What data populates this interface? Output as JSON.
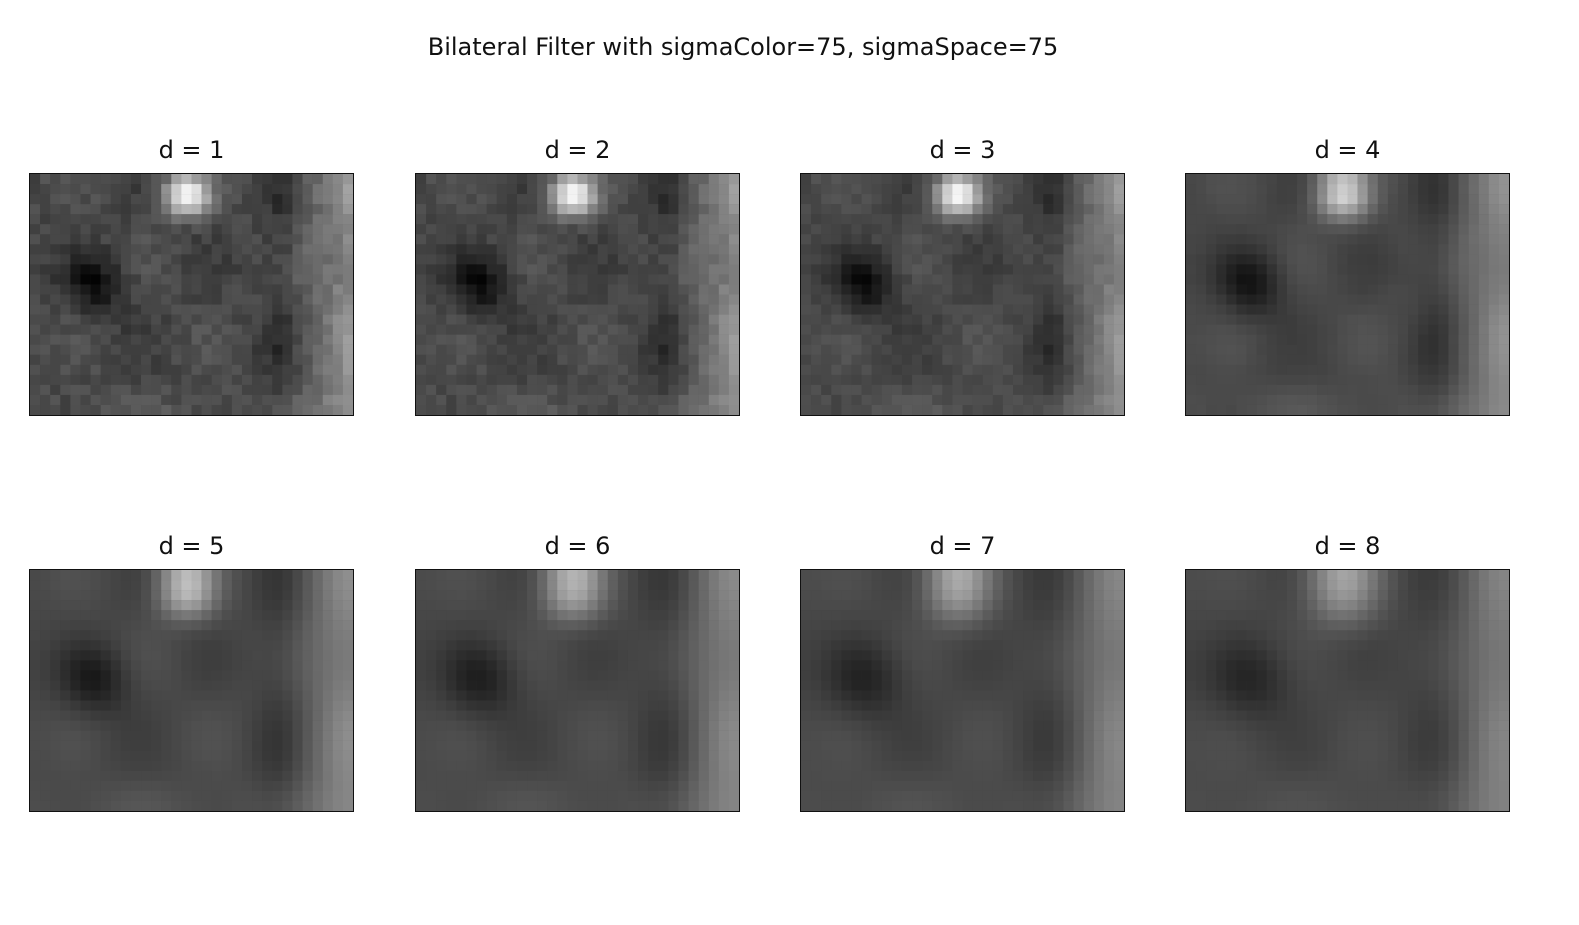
{
  "figure": {
    "title": "Bilateral Filter with sigmaColor=75, sigmaSpace=75"
  },
  "panels": [
    {
      "title": "d = 1",
      "d": 1
    },
    {
      "title": "d = 2",
      "d": 2
    },
    {
      "title": "d = 3",
      "d": 3
    },
    {
      "title": "d = 4",
      "d": 4
    },
    {
      "title": "d = 5",
      "d": 5
    },
    {
      "title": "d = 6",
      "d": 6
    },
    {
      "title": "d = 7",
      "d": 7
    },
    {
      "title": "d = 8",
      "d": 8
    }
  ],
  "image_style": {
    "colormap": "gray"
  }
}
